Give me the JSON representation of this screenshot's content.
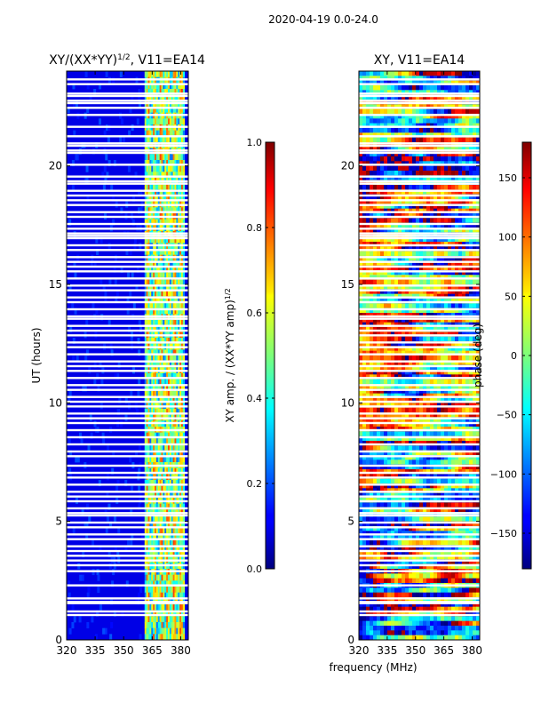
{
  "chart_data": {
    "suptitle": "2020-04-19 0.0-24.0",
    "shared_xlabel": "frequency (MHz)",
    "panels": [
      {
        "type": "heatmap",
        "title_base": "XY/(XX*YY)",
        "title_sup": "1/2",
        "title_rest": ", V11=EA14",
        "ylabel": "UT (hours)",
        "xlim": [
          320,
          384
        ],
        "ylim": [
          0,
          24
        ],
        "xticks": [
          320,
          335,
          350,
          365,
          380
        ],
        "xtick_labels": [
          "320",
          "335",
          "350",
          "365",
          "380"
        ],
        "yticks": [
          0,
          5,
          10,
          15,
          20
        ],
        "ytick_labels": [
          "0",
          "5",
          "10",
          "15",
          "20"
        ],
        "colorscale": "jet",
        "value_range": [
          0.0,
          1.0
        ],
        "colorbar": {
          "label_base": "XY amp. / (XX*YY amp)",
          "label_sup": "1/2",
          "ticks": [
            0.0,
            0.2,
            0.4,
            0.6,
            0.8,
            1.0
          ],
          "tick_labels": [
            "0.0",
            "0.2",
            "0.4",
            "0.6",
            "0.8",
            "1.0"
          ]
        },
        "active_band_mhz": [
          361,
          382
        ],
        "flagged_hours": [
          1.05,
          1.2,
          1.55,
          1.6,
          1.75,
          2.3,
          2.9,
          3.15,
          3.35,
          3.55,
          3.75,
          3.95,
          4.25,
          4.45,
          4.75,
          4.95,
          5.25,
          5.35,
          5.55,
          5.85,
          6.05,
          6.25,
          6.55,
          6.85,
          7.05,
          7.35,
          7.75,
          7.95,
          8.25,
          8.55,
          8.85,
          9.15,
          9.35,
          9.55,
          9.85,
          10.05,
          10.25,
          10.55,
          10.75,
          11.05,
          11.35,
          11.55,
          11.75,
          12.05,
          12.35,
          12.55,
          12.85,
          13.05,
          13.25,
          13.55,
          13.65,
          13.95,
          14.25,
          14.45,
          14.75,
          14.95,
          15.25,
          15.55,
          15.75,
          15.95,
          16.15,
          16.45,
          16.65,
          16.95,
          17.05,
          17.15,
          17.35,
          17.55,
          17.85,
          18.05,
          18.35,
          18.55,
          18.75,
          18.95,
          19.25,
          19.35,
          19.55,
          20.05,
          20.55,
          20.65,
          20.85,
          20.95,
          21.25,
          21.65,
          22.15,
          22.45,
          22.65,
          22.75,
          22.95,
          23.05,
          23.45,
          23.65
        ]
      },
      {
        "type": "heatmap",
        "title_base": "XY, V11=EA14",
        "title_sup": "",
        "title_rest": "",
        "ylabel": "",
        "xlim": [
          320,
          384
        ],
        "ylim": [
          0,
          24
        ],
        "xticks": [
          320,
          335,
          350,
          365,
          380
        ],
        "xtick_labels": [
          "320",
          "335",
          "350",
          "365",
          "380"
        ],
        "yticks": [
          0,
          5,
          10,
          15,
          20
        ],
        "ytick_labels": [
          "0",
          "5",
          "10",
          "15",
          "20"
        ],
        "colorscale": "jet",
        "value_range": [
          -180,
          180
        ],
        "colorbar": {
          "label_base": "phase (deg)",
          "label_sup": "",
          "ticks": [
            -150,
            -100,
            -50,
            0,
            50,
            100,
            150
          ],
          "tick_labels": [
            "−150",
            "−100",
            "−50",
            "0",
            "50",
            "100",
            "150"
          ]
        },
        "flagged_hours": [
          1.05,
          1.2,
          1.55,
          1.6,
          1.75,
          2.3,
          2.9,
          3.15,
          3.35,
          3.55,
          3.75,
          3.95,
          4.25,
          4.45,
          4.75,
          4.95,
          5.25,
          5.35,
          5.55,
          5.85,
          6.05,
          6.25,
          6.55,
          6.85,
          7.05,
          7.35,
          7.75,
          7.95,
          8.25,
          8.55,
          8.85,
          9.15,
          9.35,
          9.55,
          9.85,
          10.05,
          10.25,
          10.55,
          10.75,
          11.05,
          11.35,
          11.55,
          11.75,
          12.05,
          12.35,
          12.55,
          12.85,
          13.05,
          13.25,
          13.55,
          13.65,
          13.95,
          14.25,
          14.45,
          14.75,
          14.95,
          15.25,
          15.55,
          15.75,
          15.95,
          16.15,
          16.45,
          16.65,
          16.95,
          17.05,
          17.15,
          17.35,
          17.55,
          17.85,
          18.05,
          18.35,
          18.55,
          18.75,
          18.95,
          19.25,
          19.35,
          19.55,
          20.05,
          20.55,
          20.65,
          20.85,
          20.95,
          21.25,
          21.65,
          22.15,
          22.45,
          22.65,
          22.75,
          22.95,
          23.05,
          23.45,
          23.65
        ]
      }
    ]
  }
}
